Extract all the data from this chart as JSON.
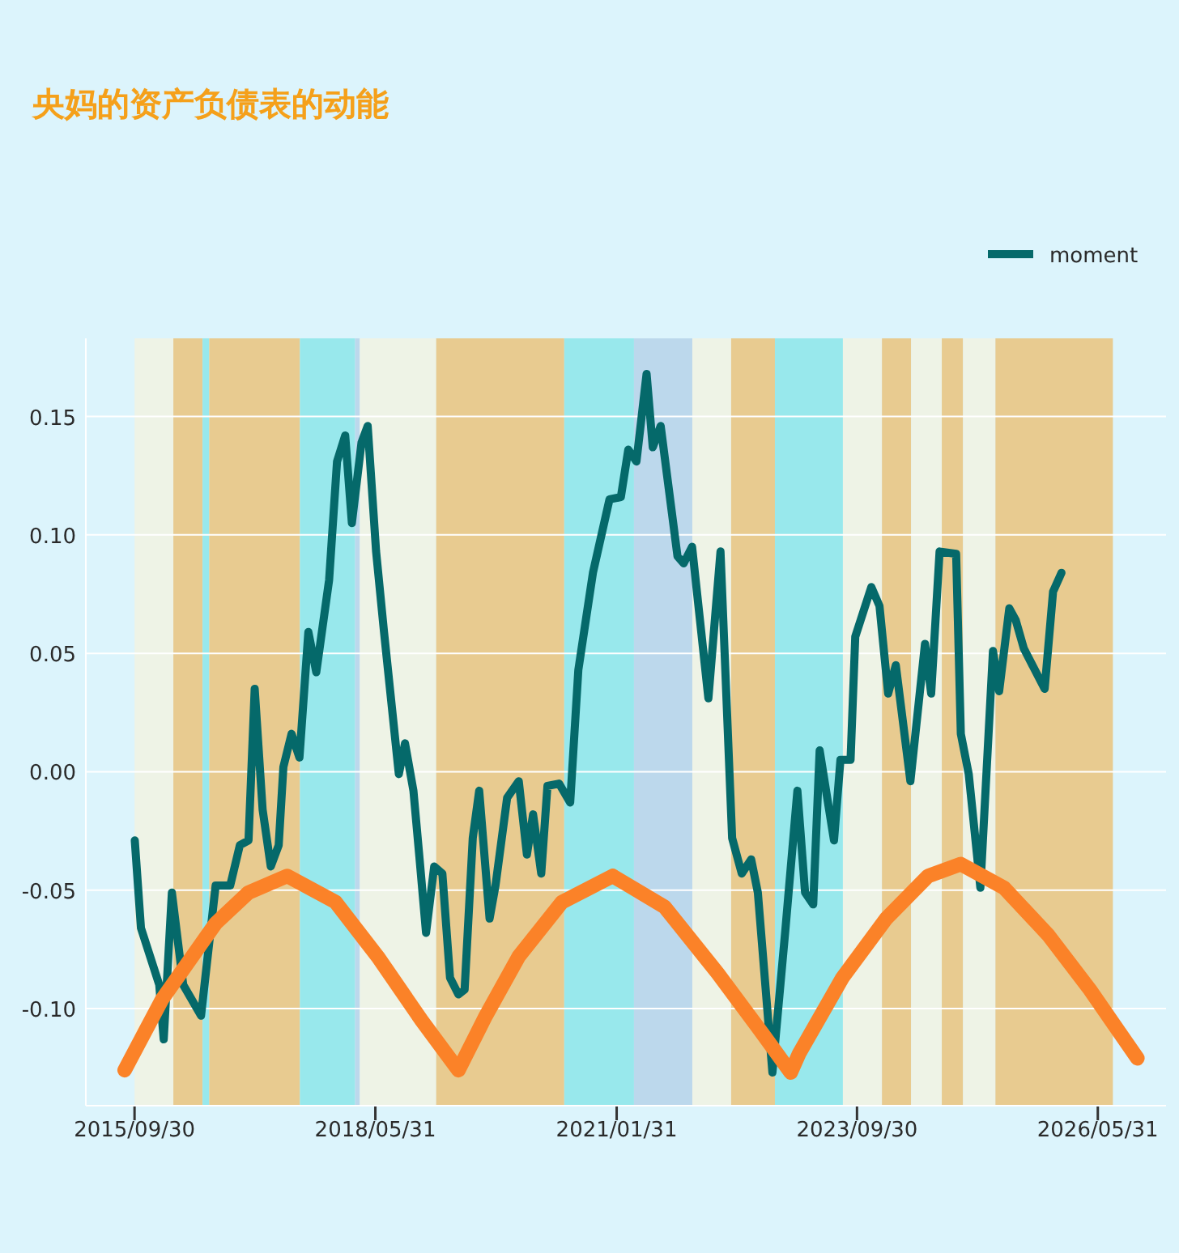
{
  "chart_data": {
    "type": "line",
    "title": "央妈的资产负债表的动能",
    "x": [
      "2015-10-01",
      "2015-10-26",
      "2016-01-08",
      "2016-01-26",
      "2016-02-28",
      "2016-04-14",
      "2016-06-25",
      "2016-08-23",
      "2016-10-21",
      "2016-11-29",
      "2017-01-03",
      "2017-01-28",
      "2017-03-01",
      "2017-04-03",
      "2017-05-05",
      "2017-05-24",
      "2017-06-26",
      "2017-07-28",
      "2017-09-02",
      "2017-10-04",
      "2017-11-25",
      "2017-12-27",
      "2018-01-29",
      "2018-02-25",
      "2018-04-05",
      "2018-04-30",
      "2018-06-03",
      "2018-07-05",
      "2018-09-03",
      "2018-09-28",
      "2018-11-01",
      "2018-11-26",
      "2018-12-22",
      "2019-01-24",
      "2019-02-26",
      "2019-03-29",
      "2019-05-02",
      "2019-05-27",
      "2019-06-29",
      "2019-07-25",
      "2019-09-05",
      "2019-09-29",
      "2019-11-15",
      "2020-01-01",
      "2020-02-03",
      "2020-02-28",
      "2020-04-01",
      "2020-04-26",
      "2020-06-12",
      "2020-07-27",
      "2020-08-29",
      "2020-10-27",
      "2021-01-02",
      "2021-02-17",
      "2021-03-19",
      "2021-04-21",
      "2021-06-01",
      "2021-06-26",
      "2021-07-28",
      "2021-10-04",
      "2021-10-29",
      "2021-12-02",
      "2022-02-06",
      "2022-03-27",
      "2022-05-13",
      "2022-06-21",
      "2022-07-29",
      "2022-08-25",
      "2022-10-23",
      "2022-12-15",
      "2023-02-01",
      "2023-03-04",
      "2023-04-06",
      "2023-05-02",
      "2023-06-29",
      "2023-07-25",
      "2023-09-04",
      "2023-09-23",
      "2023-11-27",
      "2023-12-30",
      "2024-02-03",
      "2024-03-05",
      "2024-05-03",
      "2024-07-01",
      "2024-07-26",
      "2024-08-29",
      "2024-11-04",
      "2024-11-23",
      "2024-12-25",
      "2025-02-10",
      "2025-04-02",
      "2025-04-27",
      "2025-06-07",
      "2025-07-03",
      "2025-08-05",
      "2025-10-28",
      "2025-12-01",
      "2026-01-04"
    ],
    "series": [
      {
        "name": "moment",
        "color": "#05696a",
        "values": [
          -0.029,
          -0.066,
          -0.09,
          -0.113,
          -0.051,
          -0.09,
          -0.103,
          -0.048,
          -0.048,
          -0.031,
          -0.029,
          0.035,
          -0.016,
          -0.04,
          -0.031,
          0.002,
          0.016,
          0.006,
          0.059,
          0.042,
          0.081,
          0.131,
          0.142,
          0.105,
          0.139,
          0.146,
          0.093,
          0.059,
          -0.001,
          0.012,
          -0.008,
          -0.037,
          -0.068,
          -0.04,
          -0.043,
          -0.087,
          -0.094,
          -0.092,
          -0.028,
          -0.008,
          -0.062,
          -0.048,
          -0.011,
          -0.004,
          -0.035,
          -0.018,
          -0.043,
          -0.006,
          -0.005,
          -0.013,
          0.043,
          0.084,
          0.115,
          0.116,
          0.136,
          0.131,
          0.168,
          0.137,
          0.146,
          0.091,
          0.088,
          0.095,
          0.031,
          0.093,
          -0.028,
          -0.043,
          -0.037,
          -0.051,
          -0.127,
          -0.066,
          -0.008,
          -0.051,
          -0.056,
          0.009,
          -0.029,
          0.005,
          0.005,
          0.057,
          0.078,
          0.07,
          0.033,
          0.045,
          -0.004,
          0.054,
          0.033,
          0.093,
          0.092,
          0.016,
          -0.001,
          -0.049,
          0.051,
          0.034,
          0.069,
          0.064,
          0.052,
          0.035,
          0.076,
          0.084
        ]
      },
      {
        "color": "#fb8228",
        "x": [
          "2015-08-21",
          "2016-01-20",
          "2016-08-23",
          "2017-01-03",
          "2017-06-08",
          "2017-12-21",
          "2018-06-09",
          "2018-12-04",
          "2019-05-02",
          "2019-08-21",
          "2020-01-01",
          "2020-06-24",
          "2021-01-15",
          "2021-08-12",
          "2022-03-15",
          "2022-09-09",
          "2023-01-05",
          "2023-02-08",
          "2023-08-02",
          "2024-01-26",
          "2024-07-14",
          "2024-11-23",
          "2025-05-17",
          "2025-11-12",
          "2026-04-29",
          "2026-11-07"
        ],
        "values": [
          -0.126,
          -0.096,
          -0.064,
          -0.051,
          -0.044,
          -0.055,
          -0.078,
          -0.105,
          -0.126,
          -0.103,
          -0.078,
          -0.055,
          -0.044,
          -0.057,
          -0.085,
          -0.11,
          -0.127,
          -0.119,
          -0.087,
          -0.062,
          -0.044,
          -0.039,
          -0.049,
          -0.069,
          -0.092,
          -0.121
        ]
      }
    ],
    "bands": [
      {
        "axis": "x",
        "from": "2015-09-30",
        "to": "2016-03-05",
        "color": "#eef3e6"
      },
      {
        "axis": "x",
        "from": "2016-03-05",
        "to": "2016-07-01",
        "color": "#e8cb90"
      },
      {
        "axis": "x",
        "from": "2016-07-01",
        "to": "2016-07-28",
        "color": "#98e8ec"
      },
      {
        "axis": "x",
        "from": "2016-07-28",
        "to": "2017-07-30",
        "color": "#e8cb90"
      },
      {
        "axis": "x",
        "from": "2017-07-30",
        "to": "2018-03-10",
        "color": "#98e8ec"
      },
      {
        "axis": "x",
        "from": "2018-03-10",
        "to": "2018-03-29",
        "color": "#bcd8ec"
      },
      {
        "axis": "x",
        "from": "2018-03-29",
        "to": "2019-02-01",
        "color": "#eef3e6"
      },
      {
        "axis": "x",
        "from": "2019-02-01",
        "to": "2020-07-03",
        "color": "#e8cb90"
      },
      {
        "axis": "x",
        "from": "2020-07-03",
        "to": "2021-04-11",
        "color": "#98e8ec"
      },
      {
        "axis": "x",
        "from": "2021-04-11",
        "to": "2021-12-03",
        "color": "#bcd8ec"
      },
      {
        "axis": "x",
        "from": "2021-12-03",
        "to": "2022-05-09",
        "color": "#eef3e6"
      },
      {
        "axis": "x",
        "from": "2022-05-09",
        "to": "2022-11-02",
        "color": "#e8cb90"
      },
      {
        "axis": "x",
        "from": "2022-11-02",
        "to": "2023-08-04",
        "color": "#98e8ec"
      },
      {
        "axis": "x",
        "from": "2023-08-04",
        "to": "2024-01-09",
        "color": "#eef3e6"
      },
      {
        "axis": "x",
        "from": "2024-01-09",
        "to": "2024-05-06",
        "color": "#e8cb90"
      },
      {
        "axis": "x",
        "from": "2024-05-06",
        "to": "2024-09-07",
        "color": "#eef3e6"
      },
      {
        "axis": "x",
        "from": "2024-09-07",
        "to": "2024-12-02",
        "color": "#e8cb90"
      },
      {
        "axis": "x",
        "from": "2024-12-02",
        "to": "2025-04-12",
        "color": "#eef3e6"
      },
      {
        "axis": "x",
        "from": "2025-04-12",
        "to": "2026-07-31",
        "color": "#e8cb90"
      }
    ],
    "xlim": [
      "2015-03-17",
      "2027-03-03"
    ],
    "xticks": [
      {
        "value": "2015-09-30",
        "label": "2015/09/30"
      },
      {
        "value": "2018-05-31",
        "label": "2018/05/31"
      },
      {
        "value": "2021-01-31",
        "label": "2021/01/31"
      },
      {
        "value": "2023-09-30",
        "label": "2023/09/30"
      },
      {
        "value": "2026-05-31",
        "label": "2026/05/31"
      }
    ],
    "ylim": [
      -0.141,
      0.183
    ],
    "yticks": [
      {
        "value": -0.1,
        "label": "-0.10"
      },
      {
        "value": -0.05,
        "label": "-0.05"
      },
      {
        "value": 0,
        "label": "0.00"
      },
      {
        "value": 0.05,
        "label": "0.05"
      },
      {
        "value": 0.1,
        "label": "0.10"
      },
      0.15
    ],
    "grid": "y",
    "legend": "top right",
    "line_style": "solid",
    "marker": "none"
  }
}
